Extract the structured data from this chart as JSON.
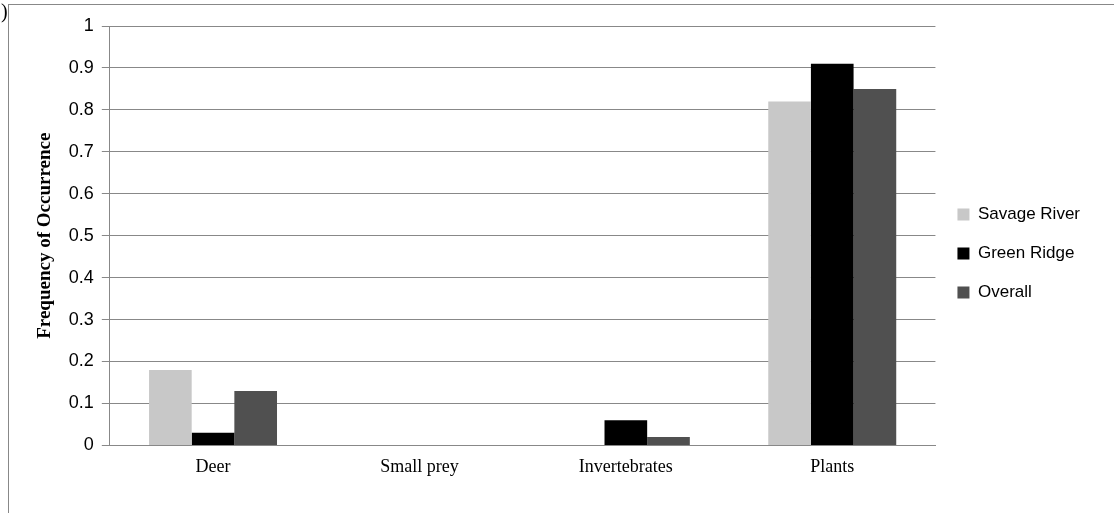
{
  "chart_data": {
    "type": "bar",
    "ylabel": "Frequency of Occurrence",
    "annotations": [
      ")"
    ],
    "categories": [
      "Deer",
      "Small prey",
      "Invertebrates",
      "Plants"
    ],
    "series": [
      {
        "name": "Savage River",
        "color": "#c8c8c8",
        "values": [
          0.18,
          0,
          0,
          0.82
        ]
      },
      {
        "name": "Green Ridge",
        "color": "#000000",
        "values": [
          0.03,
          0,
          0.06,
          0.91
        ]
      },
      {
        "name": "Overall",
        "color": "#505050",
        "values": [
          0.13,
          0,
          0.02,
          0.85
        ]
      }
    ],
    "ylim": [
      0,
      1
    ],
    "yticks": [
      0,
      0.1,
      0.2,
      0.3,
      0.4,
      0.5,
      0.6,
      0.7,
      0.8,
      0.9,
      1
    ],
    "grid": "y",
    "legend": "right"
  }
}
